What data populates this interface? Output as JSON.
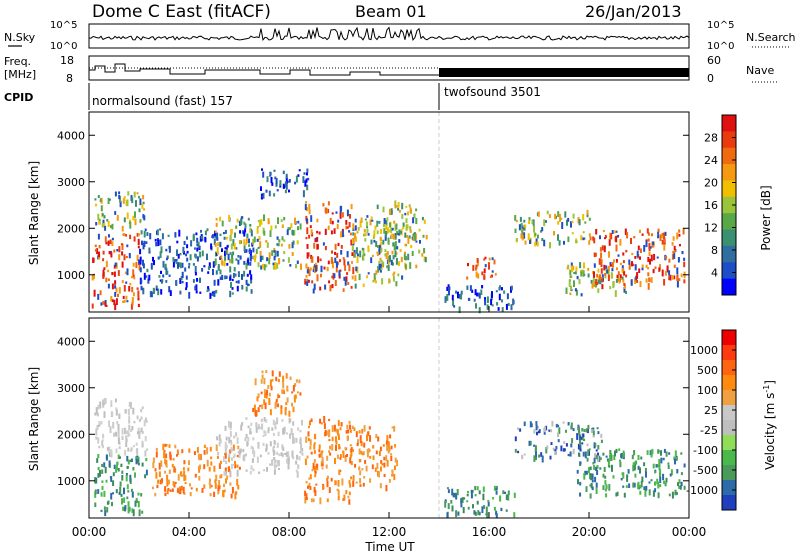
{
  "header": {
    "title": "Dome C East (fitACF)",
    "beam": "Beam 01",
    "date": "26/Jan/2013"
  },
  "sky_panel": {
    "left_label": "N.Sky",
    "right_label": "N.Search",
    "left_ticks": [
      "10^5",
      "10^0"
    ],
    "right_ticks": [
      "10^5",
      "10^0"
    ]
  },
  "freq_panel": {
    "left_label_1": "Freq.",
    "left_label_2": "[MHz]",
    "right_label": "Nave",
    "left_ticks": [
      "18",
      "8"
    ],
    "right_ticks": [
      "60",
      "0"
    ]
  },
  "cpid": {
    "label": "CPID",
    "mode_1": "normalsound (fast) 157",
    "mode_2": "twofsound 3501",
    "switch_hour": 14.0
  },
  "time_axis": {
    "label": "Time UT",
    "ticks": [
      "00:00",
      "04:00",
      "08:00",
      "12:00",
      "16:00",
      "20:00",
      "00:00"
    ]
  },
  "power_panel": {
    "ylabel": "Slant Range [km]",
    "yticks": [
      "1000",
      "2000",
      "3000",
      "4000"
    ],
    "cbar_label": "Power [dB]",
    "cbar_ticks": [
      "4",
      "8",
      "12",
      "16",
      "20",
      "24",
      "28"
    ],
    "cbar_colors": [
      "#0000ff",
      "#1d4ec8",
      "#2f6e9e",
      "#3a9070",
      "#58a848",
      "#9ac43a",
      "#f0c000",
      "#f59a10",
      "#f06a10",
      "#ea3a10",
      "#e01010"
    ]
  },
  "velocity_panel": {
    "ylabel": "Slant Range [km]",
    "yticks": [
      "1000",
      "2000",
      "3000",
      "4000"
    ],
    "cbar_label": "Velocity  [m s",
    "cbar_label_sup": "-1",
    "cbar_label_end": "]",
    "cbar_ticks": [
      "1000",
      "500",
      "100",
      "25",
      "-25",
      "-100",
      "-500",
      "-1000"
    ],
    "cbar_colors": [
      "#1f3fbf",
      "#2d6aa8",
      "#4a9a5a",
      "#4ab84a",
      "#90dd5a",
      "#bfbfbf",
      "#c8c8c8",
      "#f0a040",
      "#ff8a10",
      "#ff6410",
      "#ff3a10",
      "#ee0000"
    ]
  },
  "chart_data": {
    "type": "heatmap",
    "x_range_hours": [
      0,
      24
    ],
    "y_range_km": [
      200,
      4500
    ],
    "power_regions": [
      {
        "t0": 0.1,
        "t1": 2.0,
        "r0": 350,
        "r1": 1900,
        "level": "high"
      },
      {
        "t0": 0.2,
        "t1": 2.2,
        "r0": 2000,
        "r1": 2800,
        "level": "mid"
      },
      {
        "t0": 2.0,
        "t1": 6.5,
        "r0": 600,
        "r1": 2000,
        "level": "low"
      },
      {
        "t0": 5.0,
        "t1": 8.5,
        "r0": 1200,
        "r1": 2300,
        "level": "mid"
      },
      {
        "t0": 6.8,
        "t1": 8.8,
        "r0": 2700,
        "r1": 3300,
        "level": "low"
      },
      {
        "t0": 8.6,
        "t1": 10.6,
        "r0": 700,
        "r1": 2600,
        "level": "high"
      },
      {
        "t0": 10.5,
        "t1": 12.5,
        "r0": 800,
        "r1": 2300,
        "level": "mid"
      },
      {
        "t0": 11.5,
        "t1": 13.5,
        "r0": 1200,
        "r1": 2600,
        "level": "mid"
      },
      {
        "t0": 14.1,
        "t1": 17.0,
        "r0": 300,
        "r1": 800,
        "level": "low"
      },
      {
        "t0": 15.0,
        "t1": 16.3,
        "r0": 900,
        "r1": 1400,
        "level": "high"
      },
      {
        "t0": 17.0,
        "t1": 20.0,
        "r0": 1700,
        "r1": 2400,
        "level": "mid"
      },
      {
        "t0": 19.0,
        "t1": 21.5,
        "r0": 600,
        "r1": 1300,
        "level": "mid"
      },
      {
        "t0": 20.0,
        "t1": 23.8,
        "r0": 800,
        "r1": 2000,
        "level": "high"
      }
    ],
    "velocity_regions": [
      {
        "t0": 0.2,
        "t1": 2.3,
        "r0": 350,
        "r1": 1600,
        "dir": "toward"
      },
      {
        "t0": 0.2,
        "t1": 2.3,
        "r0": 1600,
        "r1": 2800,
        "dir": "gray"
      },
      {
        "t0": 2.5,
        "t1": 6.0,
        "r0": 700,
        "r1": 1800,
        "dir": "away"
      },
      {
        "t0": 5.0,
        "t1": 8.5,
        "r0": 1200,
        "r1": 2400,
        "dir": "gray"
      },
      {
        "t0": 6.5,
        "t1": 8.5,
        "r0": 2500,
        "r1": 3400,
        "dir": "away"
      },
      {
        "t0": 8.6,
        "t1": 10.5,
        "r0": 600,
        "r1": 2400,
        "dir": "away"
      },
      {
        "t0": 10.4,
        "t1": 12.3,
        "r0": 900,
        "r1": 2200,
        "dir": "away"
      },
      {
        "t0": 14.2,
        "t1": 17.0,
        "r0": 300,
        "r1": 900,
        "dir": "toward"
      },
      {
        "t0": 17.0,
        "t1": 20.5,
        "r0": 1500,
        "r1": 2300,
        "dir": "fast"
      },
      {
        "t0": 19.5,
        "t1": 23.8,
        "r0": 700,
        "r1": 1700,
        "dir": "toward"
      }
    ]
  }
}
